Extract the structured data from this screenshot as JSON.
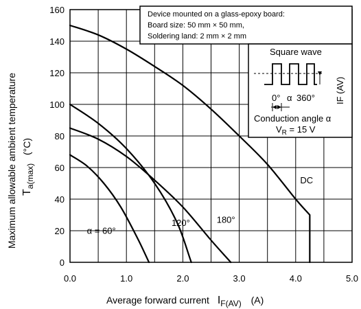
{
  "chart_data": {
    "type": "line",
    "xlabel": {
      "main": "Average forward current",
      "symbol": "I",
      "sub": "F(AV)",
      "unit": "(A)"
    },
    "ylabel": {
      "main": "Maximum allowable ambient temperature",
      "symbol": "T",
      "sub": "a(max)",
      "unit": "(°C)"
    },
    "xlim": [
      0,
      5
    ],
    "ylim": [
      0,
      160
    ],
    "x_ticks": [
      "0.0",
      "1.0",
      "2.0",
      "3.0",
      "4.0",
      "5.0"
    ],
    "y_ticks": [
      "0",
      "20",
      "40",
      "60",
      "80",
      "100",
      "120",
      "140",
      "160"
    ],
    "grid": true,
    "series": [
      {
        "name": "DC",
        "x": [
          0,
          0.5,
          1.0,
          1.5,
          2.0,
          2.5,
          3.0,
          3.5,
          4.0,
          4.25,
          4.25
        ],
        "y": [
          150,
          144,
          135,
          124,
          112,
          97,
          80,
          62,
          40,
          30,
          0
        ]
      },
      {
        "name": "180°",
        "x": [
          0,
          0.5,
          1.0,
          1.5,
          2.0,
          2.5,
          2.85
        ],
        "y": [
          85,
          78,
          67,
          52,
          35,
          14,
          0
        ]
      },
      {
        "name": "120°",
        "x": [
          0,
          0.5,
          1.0,
          1.5,
          1.9,
          2.15
        ],
        "y": [
          100,
          88,
          72,
          50,
          25,
          0
        ]
      },
      {
        "name": "α = 60°",
        "x": [
          0,
          0.3,
          0.6,
          0.9,
          1.2,
          1.4
        ],
        "y": [
          68,
          61,
          50,
          35,
          15,
          0
        ]
      }
    ],
    "curve_labels": [
      {
        "text": "DC",
        "at": [
          4.08,
          50
        ]
      },
      {
        "text": "180°",
        "at": [
          2.6,
          25
        ]
      },
      {
        "text": "120°",
        "at": [
          1.8,
          23
        ]
      },
      {
        "text": "α = 60°",
        "at": [
          0.3,
          18
        ]
      }
    ],
    "conditions": [
      "Device mounted on a glass-epoxy board:",
      "Board size: 50 mm × 50 mm,",
      "Soldering land: 2 mm × 2 mm"
    ],
    "inset": {
      "title": "Square wave",
      "current_label": "IF (AV)",
      "angle_start": "0°",
      "angle_mid": "α",
      "angle_end": "360°",
      "conduction": "Conduction angle α",
      "voltage_symbol": "V",
      "voltage_sub": "R",
      "voltage_value": " = 15 V"
    }
  }
}
